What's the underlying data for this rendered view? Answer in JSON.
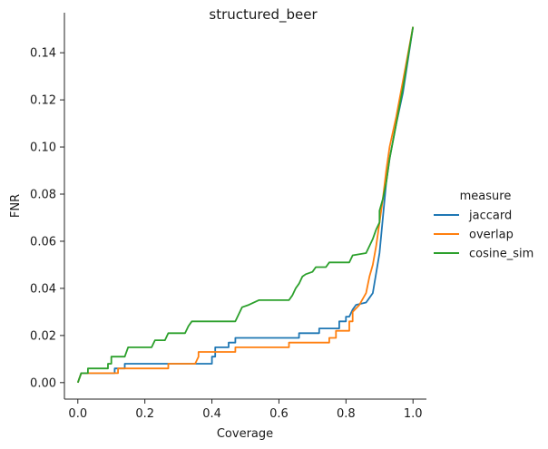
{
  "chart_data": {
    "type": "line",
    "title": "structured_beer",
    "xlabel": "Coverage",
    "ylabel": "FNR",
    "xlim": [
      -0.04,
      1.04
    ],
    "ylim": [
      -0.007,
      0.157
    ],
    "xticks": [
      0.0,
      0.2,
      0.4,
      0.6,
      0.8,
      1.0
    ],
    "xtick_labels": [
      "0.0",
      "0.2",
      "0.4",
      "0.6",
      "0.8",
      "1.0"
    ],
    "yticks": [
      0.0,
      0.02,
      0.04,
      0.06,
      0.08,
      0.1,
      0.12,
      0.14
    ],
    "ytick_labels": [
      "0.00",
      "0.02",
      "0.04",
      "0.06",
      "0.08",
      "0.10",
      "0.12",
      "0.14"
    ],
    "grid": false,
    "legend": {
      "title": "measure",
      "placement": "right"
    },
    "series": [
      {
        "name": "jaccard",
        "color": "#1f77b4",
        "points": [
          [
            0.0,
            0.0
          ],
          [
            0.01,
            0.004
          ],
          [
            0.11,
            0.004
          ],
          [
            0.11,
            0.006
          ],
          [
            0.14,
            0.006
          ],
          [
            0.14,
            0.008
          ],
          [
            0.4,
            0.008
          ],
          [
            0.4,
            0.011
          ],
          [
            0.41,
            0.011
          ],
          [
            0.41,
            0.015
          ],
          [
            0.45,
            0.015
          ],
          [
            0.45,
            0.017
          ],
          [
            0.47,
            0.017
          ],
          [
            0.47,
            0.019
          ],
          [
            0.66,
            0.019
          ],
          [
            0.66,
            0.021
          ],
          [
            0.72,
            0.021
          ],
          [
            0.72,
            0.023
          ],
          [
            0.78,
            0.023
          ],
          [
            0.78,
            0.026
          ],
          [
            0.8,
            0.026
          ],
          [
            0.8,
            0.028
          ],
          [
            0.81,
            0.028
          ],
          [
            0.82,
            0.031
          ],
          [
            0.83,
            0.033
          ],
          [
            0.86,
            0.034
          ],
          [
            0.87,
            0.036
          ],
          [
            0.88,
            0.038
          ],
          [
            0.9,
            0.055
          ],
          [
            0.91,
            0.07
          ],
          [
            0.92,
            0.085
          ],
          [
            0.93,
            0.095
          ],
          [
            0.95,
            0.11
          ],
          [
            0.97,
            0.123
          ],
          [
            1.0,
            0.151
          ]
        ]
      },
      {
        "name": "overlap",
        "color": "#ff7f0e",
        "points": [
          [
            0.0,
            0.0
          ],
          [
            0.01,
            0.004
          ],
          [
            0.12,
            0.004
          ],
          [
            0.12,
            0.006
          ],
          [
            0.27,
            0.006
          ],
          [
            0.27,
            0.008
          ],
          [
            0.35,
            0.008
          ],
          [
            0.36,
            0.011
          ],
          [
            0.36,
            0.013
          ],
          [
            0.47,
            0.013
          ],
          [
            0.47,
            0.015
          ],
          [
            0.63,
            0.015
          ],
          [
            0.63,
            0.017
          ],
          [
            0.75,
            0.017
          ],
          [
            0.75,
            0.019
          ],
          [
            0.77,
            0.019
          ],
          [
            0.77,
            0.022
          ],
          [
            0.81,
            0.022
          ],
          [
            0.81,
            0.026
          ],
          [
            0.82,
            0.026
          ],
          [
            0.82,
            0.03
          ],
          [
            0.84,
            0.033
          ],
          [
            0.86,
            0.038
          ],
          [
            0.87,
            0.045
          ],
          [
            0.88,
            0.05
          ],
          [
            0.89,
            0.058
          ],
          [
            0.9,
            0.068
          ],
          [
            0.91,
            0.078
          ],
          [
            0.92,
            0.09
          ],
          [
            0.93,
            0.1
          ],
          [
            0.95,
            0.113
          ],
          [
            0.97,
            0.128
          ],
          [
            1.0,
            0.151
          ]
        ]
      },
      {
        "name": "cosine_sim",
        "color": "#2ca02c",
        "points": [
          [
            0.0,
            0.0
          ],
          [
            0.01,
            0.004
          ],
          [
            0.03,
            0.004
          ],
          [
            0.03,
            0.006
          ],
          [
            0.09,
            0.006
          ],
          [
            0.09,
            0.008
          ],
          [
            0.1,
            0.008
          ],
          [
            0.1,
            0.011
          ],
          [
            0.14,
            0.011
          ],
          [
            0.15,
            0.015
          ],
          [
            0.22,
            0.015
          ],
          [
            0.23,
            0.018
          ],
          [
            0.26,
            0.018
          ],
          [
            0.27,
            0.021
          ],
          [
            0.32,
            0.021
          ],
          [
            0.33,
            0.024
          ],
          [
            0.34,
            0.026
          ],
          [
            0.47,
            0.026
          ],
          [
            0.48,
            0.029
          ],
          [
            0.49,
            0.032
          ],
          [
            0.51,
            0.033
          ],
          [
            0.54,
            0.035
          ],
          [
            0.63,
            0.035
          ],
          [
            0.64,
            0.037
          ],
          [
            0.65,
            0.04
          ],
          [
            0.66,
            0.042
          ],
          [
            0.67,
            0.045
          ],
          [
            0.68,
            0.046
          ],
          [
            0.7,
            0.047
          ],
          [
            0.71,
            0.049
          ],
          [
            0.74,
            0.049
          ],
          [
            0.75,
            0.051
          ],
          [
            0.81,
            0.051
          ],
          [
            0.82,
            0.054
          ],
          [
            0.86,
            0.055
          ],
          [
            0.87,
            0.058
          ],
          [
            0.88,
            0.061
          ],
          [
            0.89,
            0.065
          ],
          [
            0.9,
            0.068
          ],
          [
            0.9,
            0.073
          ],
          [
            0.91,
            0.078
          ],
          [
            0.92,
            0.085
          ],
          [
            0.93,
            0.095
          ],
          [
            0.95,
            0.11
          ],
          [
            0.97,
            0.125
          ],
          [
            1.0,
            0.151
          ]
        ]
      }
    ]
  }
}
